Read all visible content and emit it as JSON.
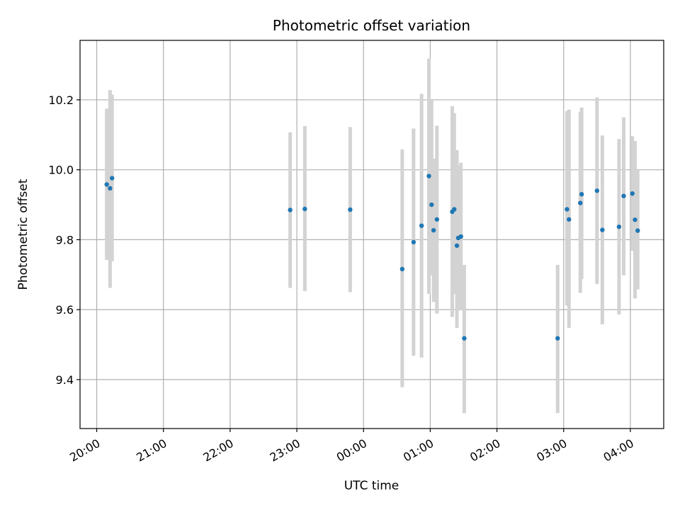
{
  "chart_data": {
    "type": "scatter",
    "title": "Photometric offset variation",
    "xlabel": "UTC time",
    "ylabel": "Photometric offset",
    "x_unit": "hours",
    "xlim": [
      19.75,
      28.5
    ],
    "ylim": [
      9.26,
      10.37
    ],
    "grid": true,
    "x_ticks": [
      {
        "value": 20,
        "label": "20:00"
      },
      {
        "value": 21,
        "label": "21:00"
      },
      {
        "value": 22,
        "label": "22:00"
      },
      {
        "value": 23,
        "label": "23:00"
      },
      {
        "value": 24,
        "label": "00:00"
      },
      {
        "value": 25,
        "label": "01:00"
      },
      {
        "value": 26,
        "label": "02:00"
      },
      {
        "value": 27,
        "label": "03:00"
      },
      {
        "value": 28,
        "label": "04:00"
      }
    ],
    "y_ticks": [
      {
        "value": 9.4,
        "label": "9.4"
      },
      {
        "value": 9.6,
        "label": "9.6"
      },
      {
        "value": 9.8,
        "label": "9.8"
      },
      {
        "value": 10.0,
        "label": "10.0"
      },
      {
        "value": 10.2,
        "label": "10.2"
      }
    ],
    "colors": {
      "point": "#1f77b4",
      "errorbar": "#d3d3d3",
      "grid": "#b0b0b0"
    },
    "points": [
      {
        "x": 20.15,
        "y": 9.958,
        "lo": 9.742,
        "hi": 10.175
      },
      {
        "x": 20.2,
        "y": 9.947,
        "lo": 9.662,
        "hi": 10.228
      },
      {
        "x": 20.23,
        "y": 9.976,
        "lo": 9.738,
        "hi": 10.215
      },
      {
        "x": 22.9,
        "y": 9.885,
        "lo": 9.662,
        "hi": 10.107
      },
      {
        "x": 23.12,
        "y": 9.888,
        "lo": 9.653,
        "hi": 10.125
      },
      {
        "x": 23.8,
        "y": 9.886,
        "lo": 9.65,
        "hi": 10.122
      },
      {
        "x": 24.58,
        "y": 9.716,
        "lo": 9.378,
        "hi": 10.058
      },
      {
        "x": 24.75,
        "y": 9.793,
        "lo": 9.468,
        "hi": 10.118
      },
      {
        "x": 24.87,
        "y": 9.84,
        "lo": 9.463,
        "hi": 10.217
      },
      {
        "x": 24.98,
        "y": 9.982,
        "lo": 9.645,
        "hi": 10.318
      },
      {
        "x": 25.02,
        "y": 9.9,
        "lo": 9.698,
        "hi": 10.198
      },
      {
        "x": 25.05,
        "y": 9.827,
        "lo": 9.622,
        "hi": 10.032
      },
      {
        "x": 25.1,
        "y": 9.858,
        "lo": 9.589,
        "hi": 10.126
      },
      {
        "x": 25.33,
        "y": 9.88,
        "lo": 9.579,
        "hi": 10.182
      },
      {
        "x": 25.36,
        "y": 9.887,
        "lo": 9.645,
        "hi": 10.162
      },
      {
        "x": 25.4,
        "y": 9.783,
        "lo": 9.548,
        "hi": 10.056
      },
      {
        "x": 25.42,
        "y": 9.805,
        "lo": 9.598,
        "hi": 10.012
      },
      {
        "x": 25.46,
        "y": 9.809,
        "lo": 9.598,
        "hi": 10.02
      },
      {
        "x": 25.51,
        "y": 9.518,
        "lo": 9.304,
        "hi": 9.728
      },
      {
        "x": 26.91,
        "y": 9.518,
        "lo": 9.304,
        "hi": 9.728
      },
      {
        "x": 27.05,
        "y": 9.887,
        "lo": 9.612,
        "hi": 10.168
      },
      {
        "x": 27.08,
        "y": 9.858,
        "lo": 9.548,
        "hi": 10.172
      },
      {
        "x": 27.25,
        "y": 9.905,
        "lo": 9.648,
        "hi": 10.165
      },
      {
        "x": 27.27,
        "y": 9.93,
        "lo": 9.688,
        "hi": 10.178
      },
      {
        "x": 27.5,
        "y": 9.94,
        "lo": 9.673,
        "hi": 10.207
      },
      {
        "x": 27.58,
        "y": 9.828,
        "lo": 9.558,
        "hi": 10.098
      },
      {
        "x": 27.83,
        "y": 9.837,
        "lo": 9.586,
        "hi": 10.088
      },
      {
        "x": 27.9,
        "y": 9.925,
        "lo": 9.698,
        "hi": 10.15
      },
      {
        "x": 28.03,
        "y": 9.932,
        "lo": 9.768,
        "hi": 10.096
      },
      {
        "x": 28.07,
        "y": 9.857,
        "lo": 9.632,
        "hi": 10.082
      },
      {
        "x": 28.11,
        "y": 9.826,
        "lo": 9.658,
        "hi": 9.998
      }
    ]
  }
}
